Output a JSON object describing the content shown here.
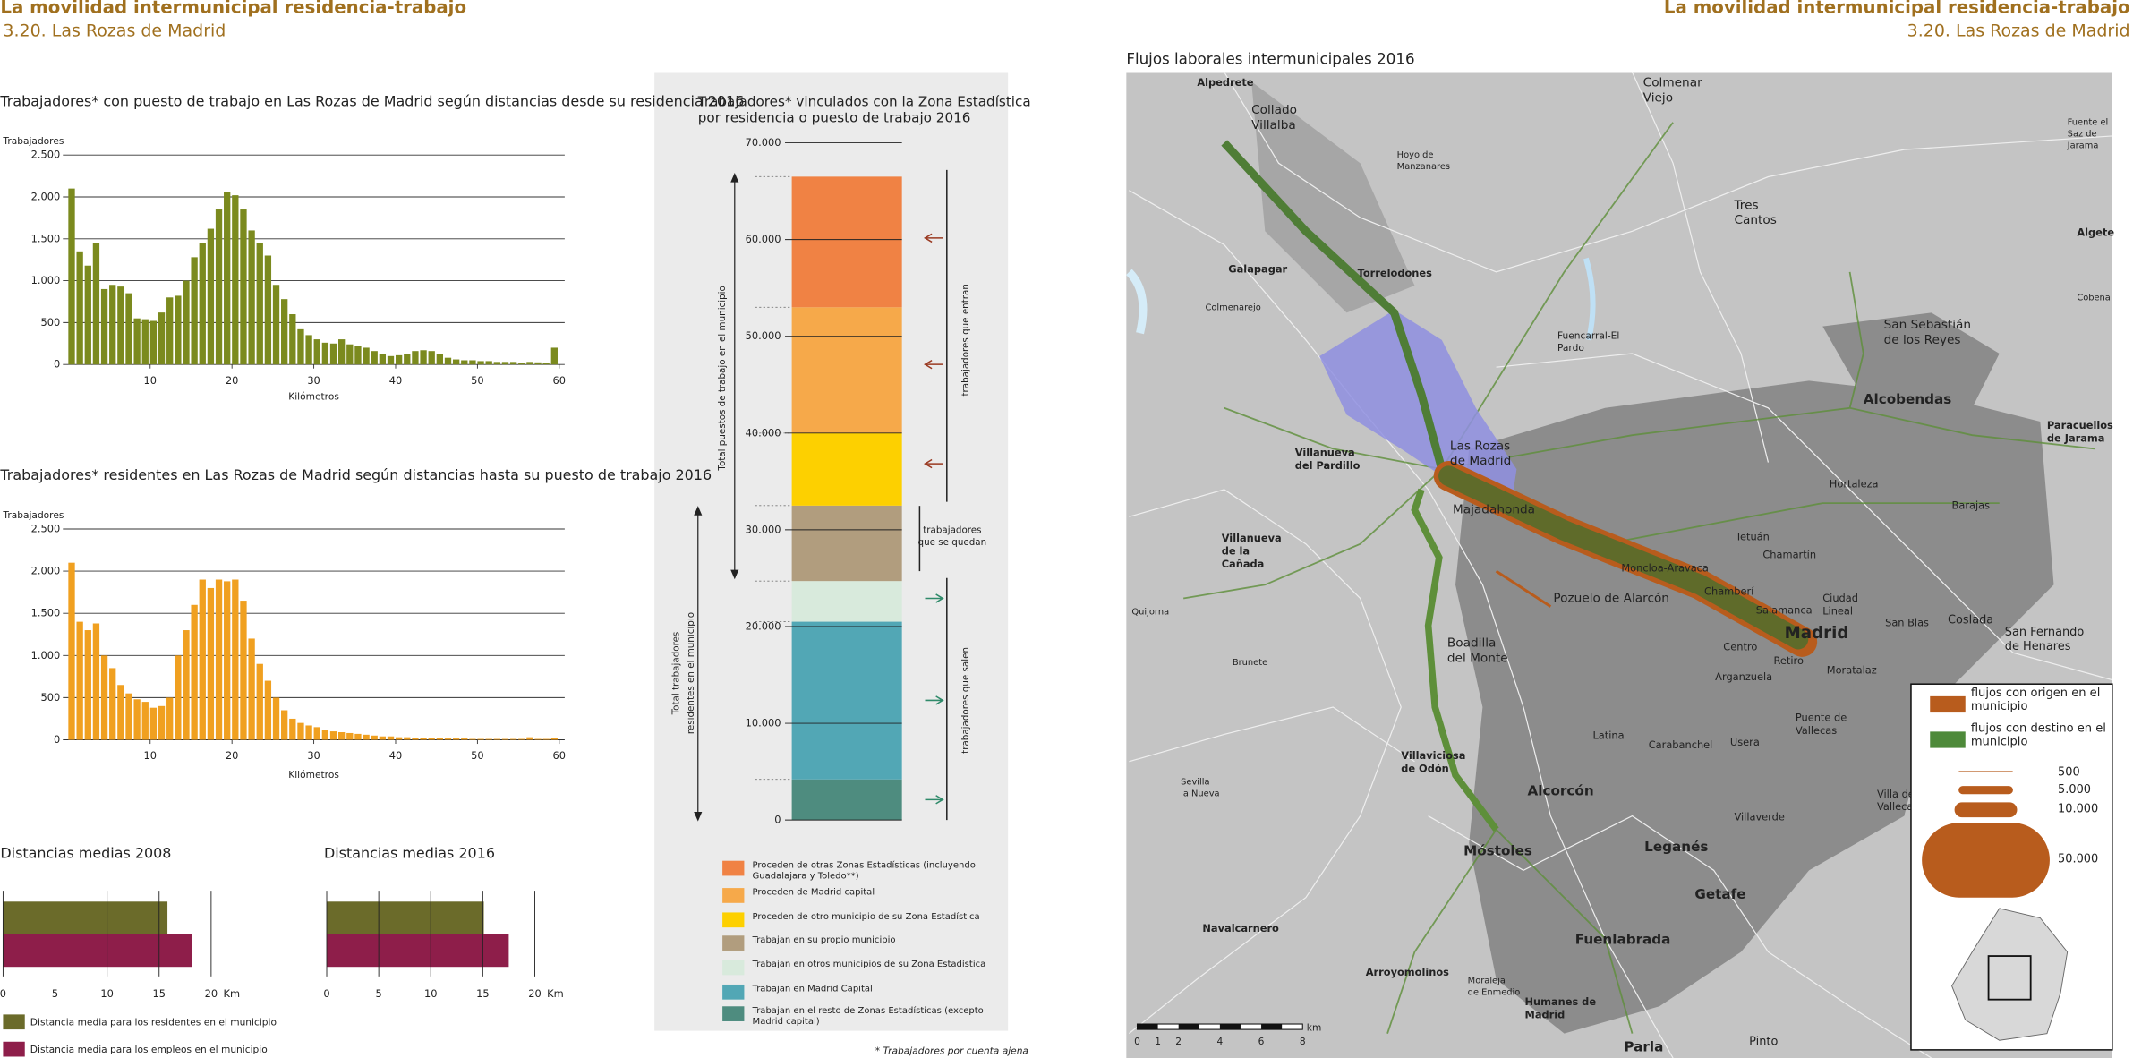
{
  "header": {
    "title": "La movilidad intermunicipal residencia-trabajo",
    "subtitle": "3.20. Las Rozas de Madrid"
  },
  "chart_data": [
    {
      "type": "histogram",
      "title": "Trabajadores* con puesto de trabajo en Las Rozas de Madrid según distancias  desde su residencia 2016",
      "y_label": "Trabajadores",
      "x_label": "Kilómetros",
      "color": "#7b8a1e",
      "bins": [
        0,
        1,
        2,
        3,
        4,
        5,
        6,
        7,
        8,
        9,
        10,
        11,
        12,
        13,
        14,
        15,
        16,
        17,
        18,
        19,
        20,
        21,
        22,
        23,
        24,
        25,
        26,
        27,
        28,
        29,
        30,
        31,
        32,
        33,
        34,
        35,
        36,
        37,
        38,
        39,
        40,
        41,
        42,
        43,
        44,
        45,
        46,
        47,
        48,
        49,
        50,
        51,
        52,
        53,
        54,
        55,
        56,
        57,
        58,
        59,
        60
      ],
      "values": [
        2100,
        1350,
        1180,
        1450,
        900,
        950,
        930,
        850,
        550,
        540,
        520,
        620,
        800,
        820,
        1000,
        1280,
        1450,
        1620,
        1850,
        2060,
        2020,
        1850,
        1600,
        1450,
        1300,
        950,
        780,
        600,
        420,
        350,
        300,
        260,
        250,
        300,
        240,
        220,
        200,
        160,
        120,
        100,
        110,
        130,
        160,
        170,
        160,
        130,
        80,
        60,
        50,
        50,
        40,
        40,
        30,
        30,
        30,
        20,
        30,
        25,
        20,
        200
      ],
      "xlim": [
        0,
        60
      ],
      "xticks": [
        10,
        20,
        30,
        40,
        50,
        60
      ],
      "ylim": [
        0,
        2500
      ],
      "yticks": [
        0,
        500,
        {
          "value": 1000,
          "label": "1.000"
        },
        {
          "value": 1500,
          "label": "1.500"
        },
        {
          "value": 2000,
          "label": "2.000"
        },
        {
          "value": 2500,
          "label": "2.500"
        }
      ],
      "grid": true
    },
    {
      "type": "histogram",
      "title": "Trabajadores* residentes en Las Rozas de Madrid según distancias  hasta su puesto de trabajo 2016",
      "y_label": "Trabajadores",
      "x_label": "Kilómetros",
      "color": "#f0a020",
      "bins": [
        0,
        1,
        2,
        3,
        4,
        5,
        6,
        7,
        8,
        9,
        10,
        11,
        12,
        13,
        14,
        15,
        16,
        17,
        18,
        19,
        20,
        21,
        22,
        23,
        24,
        25,
        26,
        27,
        28,
        29,
        30,
        31,
        32,
        33,
        34,
        35,
        36,
        37,
        38,
        39,
        40,
        41,
        42,
        43,
        44,
        45,
        46,
        47,
        48,
        49,
        50,
        51,
        52,
        53,
        54,
        55,
        56,
        57,
        58,
        59,
        60
      ],
      "values": [
        2100,
        1400,
        1300,
        1380,
        1000,
        850,
        650,
        550,
        480,
        450,
        380,
        400,
        500,
        1000,
        1300,
        1600,
        1900,
        1800,
        1900,
        1880,
        1900,
        1650,
        1200,
        900,
        700,
        500,
        350,
        250,
        200,
        170,
        150,
        120,
        100,
        90,
        80,
        70,
        60,
        50,
        40,
        40,
        30,
        30,
        25,
        25,
        20,
        20,
        15,
        15,
        15,
        10,
        10,
        10,
        10,
        10,
        10,
        10,
        30,
        10,
        10,
        20
      ],
      "xlim": [
        0,
        60
      ],
      "xticks": [
        10,
        20,
        30,
        40,
        50,
        60
      ],
      "ylim": [
        0,
        2500
      ],
      "yticks": [
        0,
        500,
        {
          "value": 1000,
          "label": "1.000"
        },
        {
          "value": 1500,
          "label": "1.500"
        },
        {
          "value": 2000,
          "label": "2.000"
        },
        {
          "value": 2500,
          "label": "2.500"
        }
      ],
      "grid": true
    },
    {
      "type": "stacked_bar",
      "title": [
        "Trabajadores* vinculados con la Zona Estadística",
        "por residencia o puesto de trabajo 2016"
      ],
      "ylim": [
        0,
        70000
      ],
      "yticks": [
        0,
        {
          "value": 10000,
          "label": "10.000"
        },
        {
          "value": 20000,
          "label": "20.000"
        },
        {
          "value": 30000,
          "label": "30.000"
        },
        {
          "value": 40000,
          "label": "40.000"
        },
        {
          "value": 50000,
          "label": "50.000"
        },
        {
          "value": 60000,
          "label": "60.000"
        },
        {
          "value": 70000,
          "label": "70.000"
        }
      ],
      "series": [
        {
          "name": "Proceden de otras Zonas Estadísticas (incluyendo Guadalajara y Toledo**)",
          "color": "#f08244",
          "values": [
            13500
          ]
        },
        {
          "name": "Proceden de Madrid capital",
          "color": "#f6a94a",
          "values": [
            13000
          ]
        },
        {
          "name": "Proceden de otro municipio de su Zona Estadística",
          "color": "#fdd000",
          "values": [
            7500
          ]
        },
        {
          "name": "Trabajan en su propio municipio",
          "color": "#b19d7e",
          "values": [
            7800
          ]
        },
        {
          "name": "Trabajan en otros municipios de su Zona Estadística",
          "color": "#d8eadc",
          "values": [
            4200
          ]
        },
        {
          "name": "Trabajan en Madrid Capital",
          "color": "#52a7b5",
          "values": [
            16300
          ]
        },
        {
          "name": "Trabajan en el resto de Zonas Estadísticas (excepto Madrid capital)",
          "color": "#4e8c7f",
          "values": [
            4200
          ]
        }
      ],
      "annotations": [
        "Total puestos de trabajo en el municipio",
        "trabajadores que entran",
        [
          "trabajadores",
          "que se quedan"
        ],
        [
          "Total trabajadores",
          "residentes en el municipio"
        ],
        "trabajadores que salen"
      ],
      "footnote": "* Trabajadores por cuenta ajena"
    },
    {
      "type": "hbar_panels",
      "categories": [
        "Distancias medias 2008",
        "Distancias medias 2016"
      ],
      "series": [
        {
          "name": "Distancia media para los residentes en el municipio",
          "color": "#6b6b2a",
          "values": [
            15.8,
            15.1
          ]
        },
        {
          "name": "Distancia media para los empleos en el municipio",
          "color": "#8e1e4a",
          "values": [
            18.2,
            17.5
          ]
        }
      ],
      "xlim": [
        0,
        20
      ],
      "xticks": [
        0,
        5,
        10,
        15,
        20
      ],
      "x_label": "Km",
      "grid": true
    }
  ],
  "map": {
    "title": "Flujos laborales intermunicipales 2016",
    "places": [
      [
        "Alpedrete"
      ],
      [
        "Collado",
        "Villalba"
      ],
      [
        "Colmenar",
        "Viejo"
      ],
      [
        "Hoyo de",
        "Manzanares"
      ],
      [
        "Tres",
        "Cantos"
      ],
      [
        "Fuente el",
        "Saz de",
        "Jarama"
      ],
      [
        "Algete"
      ],
      [
        "Cobeña"
      ],
      [
        "Galapagar"
      ],
      [
        "Torrelodones"
      ],
      [
        "Colmenarejo"
      ],
      [
        "Fuencarral-El",
        "Pardo"
      ],
      [
        "San Sebastián",
        "de los Reyes"
      ],
      [
        "Alcobendas"
      ],
      [
        "Paracuellos",
        "de Jarama"
      ],
      [
        "Las Rozas",
        "de Madrid"
      ],
      [
        "Villanueva",
        "del Pardillo"
      ],
      [
        "Majadahonda"
      ],
      [
        "Hortaleza"
      ],
      [
        "Barajas"
      ],
      [
        "Villanueva",
        "de la",
        "Cañada"
      ],
      [
        "Tetuán"
      ],
      [
        "Chamartín"
      ],
      [
        "Moncloa-Aravaca"
      ],
      [
        "Chamberí"
      ],
      [
        "Pozuelo de Alarcón"
      ],
      [
        "Ciudad",
        "Lineal"
      ],
      [
        "Quijorna"
      ],
      [
        "Salamanca"
      ],
      [
        "Madrid"
      ],
      [
        "San Blas"
      ],
      [
        "Coslada"
      ],
      [
        "San Fernando",
        "de Henares"
      ],
      [
        "Boadilla",
        "del Monte"
      ],
      [
        "Centro"
      ],
      [
        "Retiro"
      ],
      [
        "Brunete"
      ],
      [
        "Moratalaz"
      ],
      [
        "Arganzuela"
      ],
      [
        "Puente de",
        "Vallecas"
      ],
      [
        "Latina"
      ],
      [
        "Carabanchel"
      ],
      [
        "Usera"
      ],
      [
        "Villaviciosa",
        "de Odón"
      ],
      [
        "Sevilla",
        "la Nueva"
      ],
      [
        "Alcorcón"
      ],
      [
        "Villa de",
        "Vallecas"
      ],
      [
        "Villaverde"
      ],
      [
        "Móstoles"
      ],
      [
        "Leganés"
      ],
      [
        "Getafe"
      ],
      [
        "Navalcarnero"
      ],
      [
        "Fuenlabrada"
      ],
      [
        "Arroyomolinos"
      ],
      [
        "Moraleja",
        "de Enmedio"
      ],
      [
        "Humanes de",
        "Madrid"
      ],
      [
        "Pinto"
      ],
      [
        "Parla"
      ]
    ],
    "legend": {
      "items": [
        {
          "name": "flujos con origen en el municipio",
          "color": "#b85c1d"
        },
        {
          "name": "flujos con destino en el municipio",
          "color": "#4e8a3a"
        }
      ],
      "sizes": [
        500,
        {
          "value": 5000,
          "label": "5.000"
        },
        {
          "value": 10000,
          "label": "10.000"
        },
        {
          "value": 50000,
          "label": "50.000"
        }
      ]
    },
    "scale": {
      "ticks": [
        0,
        1,
        2,
        4,
        6,
        8
      ],
      "unit": "km"
    }
  }
}
